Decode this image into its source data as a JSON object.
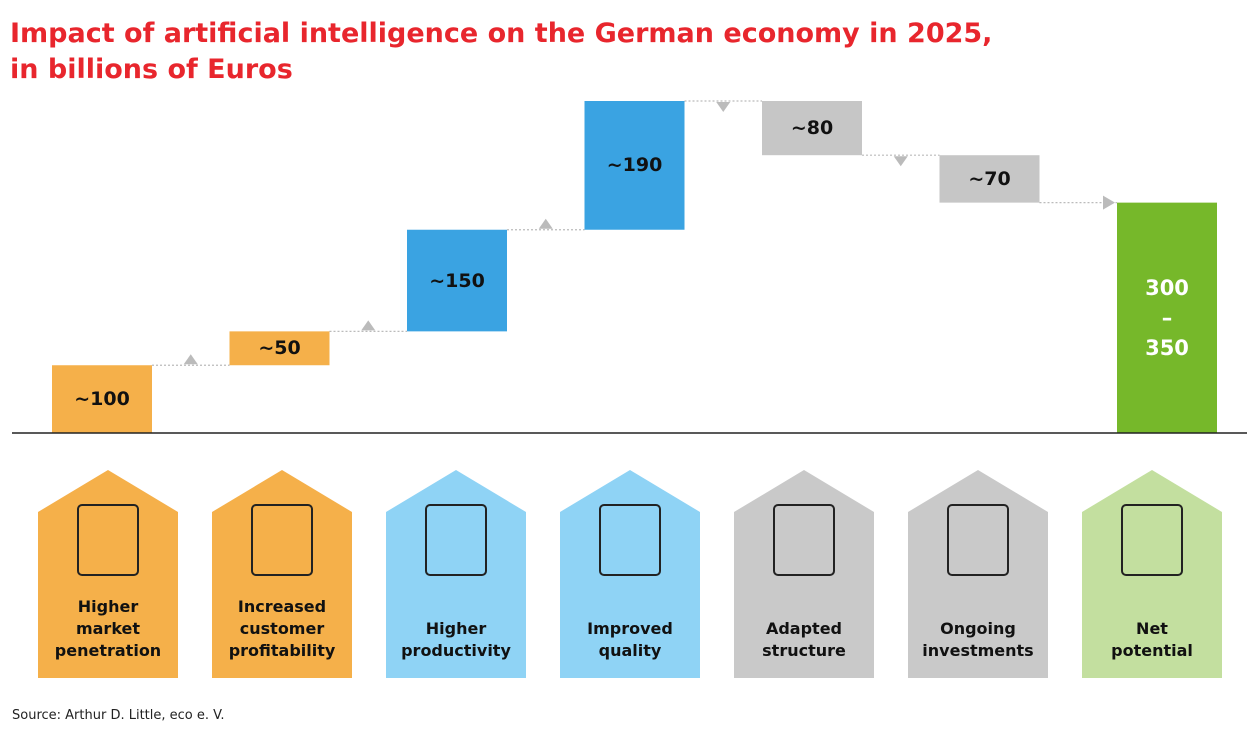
{
  "chart_data": {
    "type": "waterfall",
    "title": "Impact of artificial intelligence on the German economy in 2025,\nin billions of Euros",
    "source": "Source: Arthur D. Little, eco e. V.",
    "categories": [
      "Higher\nmarket\npenetration",
      "Increased\ncustomer\nprofitability",
      "Higher\nproductivity",
      "Improved\nquality",
      "Adapted\nstructure",
      "Ongoing\ninvestments",
      "Net\npotential"
    ],
    "values": [
      100,
      50,
      150,
      190,
      -80,
      -70,
      340
    ],
    "value_labels": [
      "~100",
      "~50",
      "~150",
      "~190",
      "~80",
      "~70",
      "300\n–\n350"
    ],
    "colors": [
      "#f5b04a",
      "#f5b04a",
      "#3aa3e2",
      "#3aa3e2",
      "#c6c6c6",
      "#c6c6c6",
      "#76b82a"
    ]
  }
}
